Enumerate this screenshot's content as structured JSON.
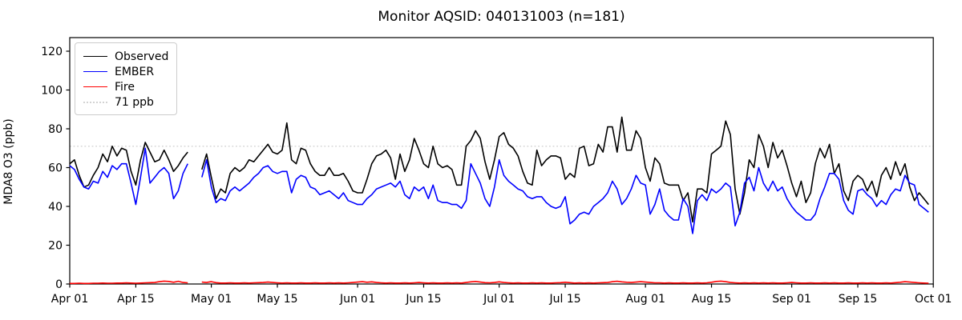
{
  "legend": {
    "items": [
      {
        "label": "Observed",
        "color": "#000000",
        "dotted": false
      },
      {
        "label": "EMBER",
        "color": "#0000ff",
        "dotted": false
      },
      {
        "label": "Fire",
        "color": "#ff0000",
        "dotted": false
      },
      {
        "label": "71 ppb",
        "color": "#d3d3d3",
        "dotted": true
      }
    ]
  },
  "chart_data": {
    "type": "line",
    "title": "Monitor AQSID: 040131003 (n=181)",
    "xlabel": "",
    "ylabel": "MDA8 O3 (ppb)",
    "ylim": [
      0,
      120
    ],
    "yticks": [
      0,
      20,
      40,
      60,
      80,
      100,
      120
    ],
    "x_start": "Apr 01",
    "x_end": "Oct 01",
    "n_days": 183,
    "n_points": 181,
    "missing_days": [
      "Apr 27",
      "Apr 28"
    ],
    "grid": false,
    "legend_position": "upper left",
    "xticks": [
      {
        "label": "Apr 01",
        "day": 0
      },
      {
        "label": "Apr 15",
        "day": 14
      },
      {
        "label": "May 01",
        "day": 30
      },
      {
        "label": "May 15",
        "day": 44
      },
      {
        "label": "Jun 01",
        "day": 61
      },
      {
        "label": "Jun 15",
        "day": 75
      },
      {
        "label": "Jul 01",
        "day": 91
      },
      {
        "label": "Jul 15",
        "day": 105
      },
      {
        "label": "Aug 01",
        "day": 122
      },
      {
        "label": "Aug 15",
        "day": 136
      },
      {
        "label": "Sep 01",
        "day": 153
      },
      {
        "label": "Sep 15",
        "day": 167
      },
      {
        "label": "Oct 01",
        "day": 183
      }
    ],
    "threshold": {
      "value": 71,
      "label": "71 ppb",
      "color": "#d3d3d3"
    },
    "series": [
      {
        "name": "Observed",
        "color": "#000000",
        "values": [
          62,
          64,
          56,
          50,
          51,
          56,
          60,
          67,
          63,
          71,
          66,
          70,
          69,
          58,
          51,
          64,
          73,
          68,
          63,
          64,
          69,
          64,
          58,
          61,
          65,
          68,
          null,
          null,
          59,
          67,
          55,
          44,
          49,
          47,
          57,
          60,
          58,
          60,
          64,
          63,
          66,
          69,
          72,
          68,
          67,
          69,
          83,
          64,
          62,
          70,
          69,
          62,
          58,
          56,
          56,
          60,
          56,
          56,
          57,
          53,
          48,
          47,
          47,
          54,
          62,
          66,
          67,
          69,
          65,
          54,
          67,
          58,
          64,
          75,
          69,
          62,
          60,
          71,
          62,
          60,
          61,
          59,
          51,
          51,
          71,
          74,
          79,
          75,
          63,
          54,
          64,
          76,
          78,
          72,
          70,
          66,
          58,
          52,
          51,
          69,
          61,
          64,
          66,
          66,
          65,
          54,
          57,
          55,
          70,
          71,
          61,
          62,
          72,
          68,
          81,
          81,
          68,
          86,
          69,
          69,
          79,
          75,
          60,
          53,
          65,
          62,
          52,
          51,
          51,
          51,
          43,
          47,
          32,
          49,
          49,
          47,
          67,
          69,
          71,
          84,
          77,
          49,
          36,
          47,
          64,
          60,
          77,
          71,
          60,
          73,
          65,
          69,
          61,
          52,
          45,
          53,
          42,
          47,
          62,
          70,
          65,
          72,
          57,
          62,
          48,
          43,
          53,
          56,
          54,
          48,
          53,
          45,
          56,
          60,
          54,
          63,
          56,
          62,
          50,
          43,
          47,
          44,
          41
        ]
      },
      {
        "name": "EMBER",
        "color": "#0000ff",
        "values": [
          61,
          59,
          54,
          50,
          49,
          53,
          52,
          58,
          55,
          61,
          59,
          62,
          62,
          52,
          41,
          55,
          70,
          52,
          55,
          58,
          60,
          57,
          44,
          48,
          57,
          62,
          null,
          null,
          55,
          64,
          50,
          42,
          44,
          43,
          48,
          50,
          48,
          50,
          52,
          55,
          57,
          60,
          61,
          58,
          57,
          58,
          58,
          47,
          54,
          56,
          55,
          50,
          49,
          46,
          47,
          48,
          46,
          44,
          47,
          43,
          42,
          41,
          41,
          44,
          46,
          49,
          50,
          51,
          52,
          50,
          53,
          46,
          44,
          50,
          48,
          50,
          44,
          51,
          43,
          42,
          42,
          41,
          41,
          39,
          43,
          62,
          57,
          52,
          44,
          40,
          50,
          64,
          56,
          53,
          51,
          49,
          48,
          45,
          44,
          45,
          45,
          42,
          40,
          39,
          40,
          45,
          31,
          33,
          36,
          37,
          36,
          40,
          42,
          44,
          47,
          53,
          49,
          41,
          44,
          49,
          56,
          52,
          51,
          36,
          41,
          49,
          38,
          35,
          33,
          33,
          44,
          40,
          26,
          43,
          46,
          43,
          49,
          47,
          49,
          52,
          50,
          30,
          37,
          52,
          55,
          48,
          60,
          52,
          48,
          53,
          48,
          50,
          44,
          40,
          37,
          35,
          33,
          33,
          36,
          44,
          50,
          57,
          57,
          54,
          43,
          38,
          36,
          48,
          49,
          46,
          44,
          40,
          43,
          41,
          46,
          49,
          48,
          56,
          52,
          51,
          41,
          39,
          37
        ]
      },
      {
        "name": "Fire",
        "color": "#ff0000",
        "values": [
          0.3,
          0.3,
          0.4,
          0.3,
          0.3,
          0.4,
          0.4,
          0.5,
          0.4,
          0.4,
          0.5,
          0.5,
          0.6,
          0.5,
          0.4,
          0.5,
          0.6,
          0.7,
          0.8,
          1.2,
          1.5,
          1.3,
          0.9,
          1.4,
          0.8,
          0.6,
          null,
          null,
          1.0,
          0.8,
          1.2,
          0.7,
          0.5,
          0.5,
          0.6,
          0.5,
          0.5,
          0.6,
          0.5,
          0.6,
          0.7,
          0.8,
          1.0,
          0.8,
          0.6,
          0.5,
          0.6,
          0.5,
          0.5,
          0.6,
          0.5,
          0.5,
          0.6,
          0.5,
          0.5,
          0.6,
          0.5,
          0.6,
          0.5,
          0.6,
          0.8,
          1.0,
          1.2,
          0.9,
          1.1,
          0.8,
          0.6,
          0.5,
          0.6,
          0.5,
          0.5,
          0.6,
          0.5,
          0.6,
          0.8,
          0.6,
          0.5,
          0.6,
          0.5,
          0.5,
          0.6,
          0.5,
          0.6,
          0.5,
          0.8,
          1.1,
          1.3,
          1.0,
          0.7,
          0.6,
          0.8,
          1.1,
          0.8,
          0.6,
          0.5,
          0.6,
          0.5,
          0.5,
          0.6,
          0.5,
          0.6,
          0.5,
          0.5,
          0.6,
          0.7,
          0.9,
          0.7,
          0.5,
          0.6,
          0.5,
          0.6,
          0.5,
          0.6,
          0.7,
          0.8,
          1.2,
          1.4,
          1.1,
          0.9,
          0.8,
          1.0,
          1.2,
          1.0,
          0.8,
          0.6,
          0.6,
          0.5,
          0.6,
          0.5,
          0.5,
          0.6,
          0.5,
          0.5,
          0.6,
          0.5,
          0.6,
          0.9,
          1.3,
          1.5,
          1.2,
          0.8,
          0.6,
          0.5,
          0.6,
          0.5,
          0.6,
          0.5,
          0.6,
          0.5,
          0.6,
          0.5,
          0.5,
          0.6,
          0.8,
          0.6,
          0.5,
          0.5,
          0.6,
          0.5,
          0.5,
          0.6,
          0.5,
          0.6,
          0.5,
          0.5,
          0.6,
          0.5,
          0.5,
          0.6,
          0.5,
          0.6,
          0.5,
          0.5,
          0.6,
          0.5,
          0.7,
          0.9,
          1.2,
          1.0,
          0.8,
          0.6,
          0.5,
          0.4
        ]
      }
    ]
  }
}
